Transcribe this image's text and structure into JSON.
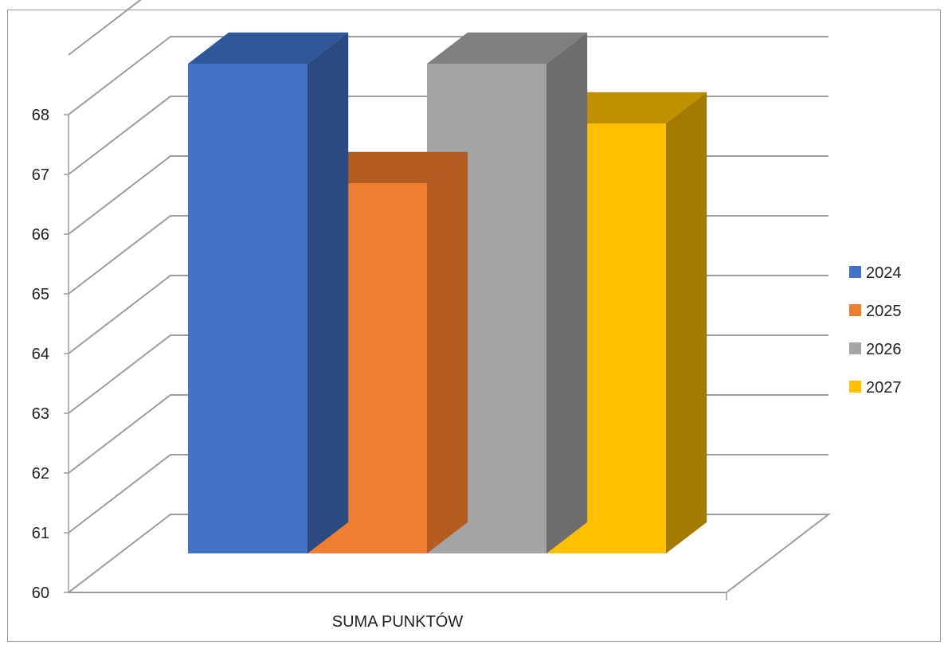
{
  "chart_data": {
    "type": "bar",
    "style": "3d-clustered-column",
    "categories": [
      "SUMA PUNKTÓW"
    ],
    "series": [
      {
        "name": "2024",
        "values": [
          68.2
        ],
        "color": "#4472C4",
        "top_color": "#30569A",
        "side_color": "#2B4A80"
      },
      {
        "name": "2025",
        "values": [
          66.2
        ],
        "color": "#ED7D31",
        "top_color": "#B45C22",
        "side_color": "#B45C22"
      },
      {
        "name": "2026",
        "values": [
          68.2
        ],
        "color": "#A5A5A5",
        "top_color": "#7F7F7F",
        "side_color": "#6E6E6E"
      },
      {
        "name": "2027",
        "values": [
          67.2
        ],
        "color": "#FFC000",
        "top_color": "#C09000",
        "side_color": "#A27B00"
      }
    ],
    "ylim": [
      60,
      68
    ],
    "yticks": [
      "60",
      "61",
      "62",
      "63",
      "64",
      "65",
      "66",
      "67",
      "68"
    ],
    "grid": true,
    "legend": "right"
  }
}
